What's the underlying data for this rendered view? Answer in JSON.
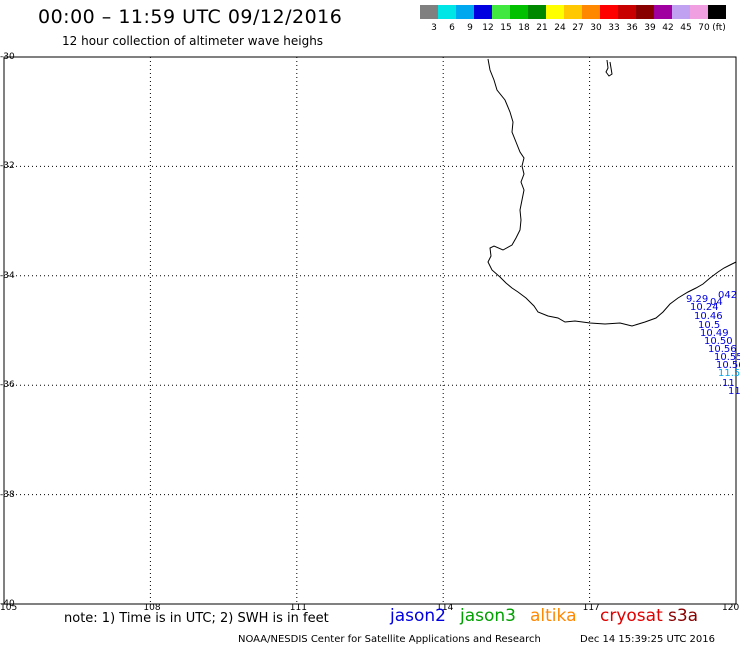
{
  "header": {
    "title": "00:00 – 11:59 UTC 09/12/2016",
    "subtitle": "12 hour collection of altimeter wave heighs"
  },
  "legend": {
    "unit": "(ft)",
    "swatches": [
      {
        "color": "#808080",
        "label": "3"
      },
      {
        "color": "#00e5e5",
        "label": "6"
      },
      {
        "color": "#00a8f0",
        "label": "9"
      },
      {
        "color": "#0000e0",
        "label": "12"
      },
      {
        "color": "#40e840",
        "label": "15"
      },
      {
        "color": "#00c000",
        "label": "18"
      },
      {
        "color": "#008800",
        "label": "21"
      },
      {
        "color": "#ffff00",
        "label": "24"
      },
      {
        "color": "#ffc800",
        "label": "27"
      },
      {
        "color": "#ff8800",
        "label": "30"
      },
      {
        "color": "#ff0000",
        "label": "33"
      },
      {
        "color": "#c80000",
        "label": "36"
      },
      {
        "color": "#880000",
        "label": "39"
      },
      {
        "color": "#a000a0",
        "label": "42"
      },
      {
        "color": "#c0a0f0",
        "label": "45"
      },
      {
        "color": "#f0a0e0",
        "label": "70"
      },
      {
        "color": "#000000",
        "label": ""
      }
    ]
  },
  "map": {
    "lon_range": [
      105,
      120
    ],
    "lat_range": [
      -40,
      -30
    ],
    "lat_ticks": [
      "-30",
      "-32",
      "-34",
      "-36",
      "-38",
      "-40"
    ],
    "lon_ticks": [
      "105",
      "108",
      "111",
      "114",
      "117",
      "120"
    ]
  },
  "observations": [
    {
      "text": "042",
      "color": "#0000e0"
    },
    {
      "text": "04",
      "color": "#0000e0"
    },
    {
      "text": "9.29",
      "color": "#0000e0"
    },
    {
      "text": "10.24",
      "color": "#0000e0"
    },
    {
      "text": "10.46",
      "color": "#0000e0"
    },
    {
      "text": "10.5",
      "color": "#0000e0"
    },
    {
      "text": "10.49",
      "color": "#0000e0"
    },
    {
      "text": "10.50",
      "color": "#0000e0"
    },
    {
      "text": "10.56",
      "color": "#0000e0"
    },
    {
      "text": "10.55",
      "color": "#0000e0"
    },
    {
      "text": "10.56",
      "color": "#0000e0"
    },
    {
      "text": "11.5",
      "color": "#00a8f0"
    },
    {
      "text": "11",
      "color": "#0000e0"
    },
    {
      "text": "11",
      "color": "#0000e0"
    }
  ],
  "footer": {
    "note": "note: 1) Time is in UTC; 2) SWH is in feet",
    "satellites": [
      {
        "name": "jason2",
        "color": "#0000e0"
      },
      {
        "name": "jason3",
        "color": "#00a000"
      },
      {
        "name": "altika",
        "color": "#ff8800"
      },
      {
        "name": "cryosat",
        "color": "#e00000"
      },
      {
        "name": "s3a",
        "color": "#880000"
      }
    ],
    "credit": "NOAA/NESDIS Center for Satellite Applications and Research",
    "timestamp": "Dec 14 15:39:25 UTC 2016"
  }
}
